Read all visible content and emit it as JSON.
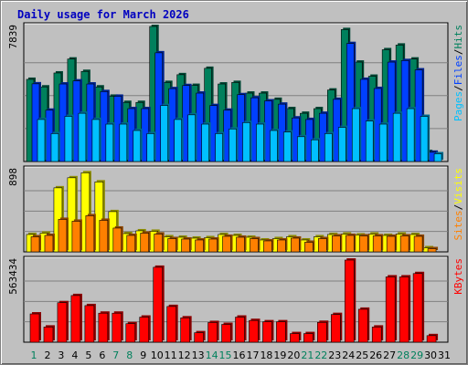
{
  "chart_data": [
    {
      "type": "bar",
      "title": "Daily usage for March 2026",
      "max_label": "7839",
      "ylim": [
        0,
        7839
      ],
      "legend": [
        "Pages",
        "Files",
        "Hits"
      ],
      "legend_placement": "right",
      "grid": true,
      "categories": [
        "1",
        "2",
        "3",
        "4",
        "5",
        "6",
        "7",
        "8",
        "9",
        "10",
        "11",
        "12",
        "13",
        "14",
        "15",
        "16",
        "17",
        "18",
        "19",
        "20",
        "21",
        "22",
        "23",
        "24",
        "25",
        "26",
        "27",
        "28",
        "29",
        "30",
        "31"
      ],
      "series": [
        {
          "name": "Hits",
          "values": [
            4770,
            4330,
            5140,
            5950,
            5230,
            4330,
            3790,
            3430,
            3430,
            7839,
            4590,
            5040,
            4420,
            5410,
            4500,
            4590,
            3970,
            3970,
            3610,
            3070,
            2800,
            3070,
            4150,
            7660,
            5770,
            4950,
            6490,
            6760,
            5950,
            580,
            0
          ]
        },
        {
          "name": "Files",
          "values": [
            4510,
            2980,
            4500,
            4680,
            4500,
            4060,
            3790,
            3070,
            3070,
            6310,
            4230,
            4410,
            3970,
            3250,
            2980,
            3880,
            3700,
            3520,
            3330,
            2530,
            2440,
            2800,
            3610,
            6850,
            4770,
            4240,
            5770,
            5860,
            5320,
            540,
            0
          ]
        },
        {
          "name": "Pages",
          "values": [
            2440,
            1620,
            2620,
            2800,
            2440,
            2170,
            2170,
            1800,
            1620,
            3250,
            2440,
            2710,
            2170,
            1620,
            1890,
            2260,
            2170,
            1800,
            1710,
            1440,
            1260,
            1620,
            1980,
            3070,
            2350,
            2170,
            2800,
            3070,
            2620,
            450,
            0
          ]
        }
      ]
    },
    {
      "type": "bar",
      "max_label": "898",
      "ylim": [
        0,
        898
      ],
      "legend": [
        "Sites",
        "Visits"
      ],
      "legend_placement": "right",
      "grid": true,
      "categories": [
        "1",
        "2",
        "3",
        "4",
        "5",
        "6",
        "7",
        "8",
        "9",
        "10",
        "11",
        "12",
        "13",
        "14",
        "15",
        "16",
        "17",
        "18",
        "19",
        "20",
        "21",
        "22",
        "23",
        "24",
        "25",
        "26",
        "27",
        "28",
        "29",
        "30",
        "31"
      ],
      "series": [
        {
          "name": "Visits",
          "values": [
            190,
            205,
            700,
            810,
            865,
            765,
            440,
            200,
            230,
            225,
            165,
            160,
            150,
            155,
            190,
            180,
            160,
            130,
            145,
            165,
            130,
            165,
            190,
            195,
            185,
            195,
            180,
            195,
            190,
            45,
            0
          ]
        },
        {
          "name": "Sites",
          "values": [
            165,
            180,
            355,
            335,
            395,
            345,
            260,
            180,
            205,
            195,
            145,
            140,
            130,
            140,
            170,
            160,
            145,
            120,
            130,
            150,
            105,
            145,
            175,
            180,
            175,
            175,
            170,
            175,
            170,
            35,
            0
          ]
        }
      ]
    },
    {
      "type": "bar",
      "max_label": "563434",
      "ylim": [
        0,
        563434
      ],
      "legend": [
        "KBytes"
      ],
      "legend_placement": "right",
      "grid": true,
      "categories": [
        "1",
        "2",
        "3",
        "4",
        "5",
        "6",
        "7",
        "8",
        "9",
        "10",
        "11",
        "12",
        "13",
        "14",
        "15",
        "16",
        "17",
        "18",
        "19",
        "20",
        "21",
        "22",
        "23",
        "24",
        "25",
        "26",
        "27",
        "28",
        "29",
        "30",
        "31"
      ],
      "series": [
        {
          "name": "KBytes",
          "values": [
            194000,
            104000,
            271000,
            320000,
            251000,
            199000,
            199000,
            127000,
            172000,
            514000,
            245000,
            167000,
            65000,
            135000,
            122000,
            172000,
            149000,
            140000,
            140000,
            59000,
            59000,
            136000,
            190000,
            563434,
            226000,
            104000,
            448000,
            448000,
            471000,
            45000,
            0
          ]
        }
      ]
    }
  ],
  "x_label_colors": {
    "weekday": "#000000",
    "weekend": "#00805c"
  },
  "weekend_days": [
    1,
    7,
    8,
    14,
    15,
    21,
    22,
    28,
    29
  ],
  "colors": {
    "hits": "#00805c",
    "files": "#0040ff",
    "pages": "#00c0ff",
    "visits": "#ffff00",
    "sites": "#ff8000",
    "kbytes": "#ff0000",
    "panel": "#c0c0c0",
    "grid": "#808080"
  }
}
